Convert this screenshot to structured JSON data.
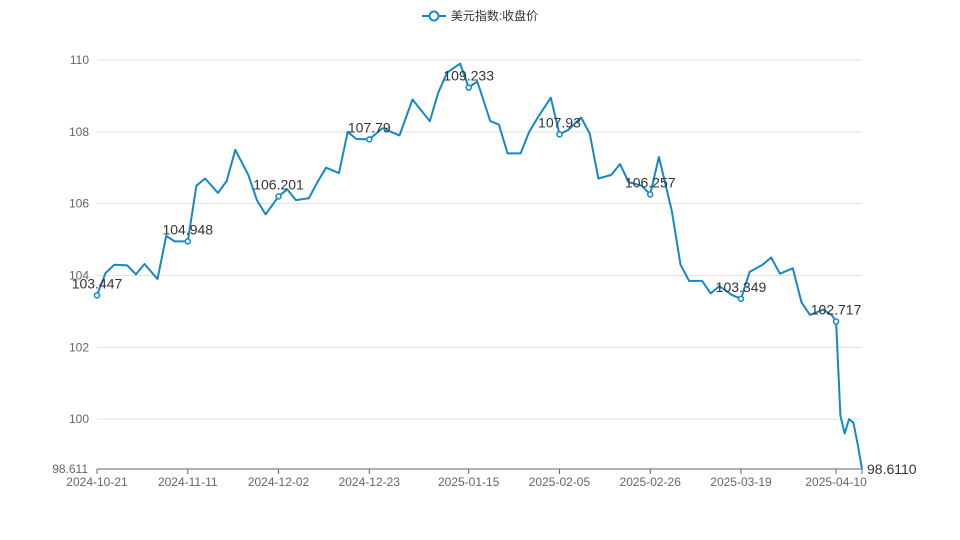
{
  "colors": {
    "line": "#1488c8",
    "grid": "#e0e0e0",
    "axis": "#666666",
    "label": "#333333"
  },
  "legend": {
    "label": "美元指数:收盘价",
    "icon": "line-with-circle-marker"
  },
  "chart_data": {
    "type": "line",
    "series": [
      {
        "name": "美元指数:收盘价"
      }
    ],
    "yaxis": {
      "min": 98.611,
      "max": 110,
      "ticks": [
        100,
        102,
        104,
        106,
        108,
        110
      ],
      "min_label": "98.611"
    },
    "ylim": [
      98.611,
      110
    ],
    "xlim": [
      "2024-10-21",
      "2025-04-16"
    ],
    "xticks": [
      "2024-10-21",
      "2024-11-11",
      "2024-12-02",
      "2024-12-23",
      "2025-01-15",
      "2025-02-05",
      "2025-02-26",
      "2025-03-19",
      "2025-04-10"
    ],
    "points": [
      [
        "2024-10-21",
        103.447
      ],
      [
        "2024-10-23",
        104.07
      ],
      [
        "2024-10-25",
        104.3
      ],
      [
        "2024-10-28",
        104.28
      ],
      [
        "2024-10-30",
        104.03
      ],
      [
        "2024-11-01",
        104.32
      ],
      [
        "2024-11-04",
        103.9
      ],
      [
        "2024-11-06",
        105.1
      ],
      [
        "2024-11-08",
        104.95
      ],
      [
        "2024-11-11",
        104.948
      ],
      [
        "2024-11-13",
        106.5
      ],
      [
        "2024-11-15",
        106.7
      ],
      [
        "2024-11-18",
        106.3
      ],
      [
        "2024-11-20",
        106.63
      ],
      [
        "2024-11-22",
        107.5
      ],
      [
        "2024-11-25",
        106.8
      ],
      [
        "2024-11-27",
        106.1
      ],
      [
        "2024-11-29",
        105.7
      ],
      [
        "2024-12-02",
        106.201
      ],
      [
        "2024-12-04",
        106.4
      ],
      [
        "2024-12-06",
        106.1
      ],
      [
        "2024-12-09",
        106.15
      ],
      [
        "2024-12-11",
        106.6
      ],
      [
        "2024-12-13",
        107.0
      ],
      [
        "2024-12-16",
        106.85
      ],
      [
        "2024-12-18",
        108.0
      ],
      [
        "2024-12-20",
        107.8
      ],
      [
        "2024-12-23",
        107.79
      ],
      [
        "2024-12-26",
        108.1
      ],
      [
        "2024-12-30",
        107.9
      ],
      [
        "2025-01-02",
        108.9
      ],
      [
        "2025-01-06",
        108.3
      ],
      [
        "2025-01-08",
        109.1
      ],
      [
        "2025-01-10",
        109.65
      ],
      [
        "2025-01-13",
        109.9
      ],
      [
        "2025-01-15",
        109.233
      ],
      [
        "2025-01-17",
        109.4
      ],
      [
        "2025-01-20",
        108.3
      ],
      [
        "2025-01-22",
        108.2
      ],
      [
        "2025-01-24",
        107.4
      ],
      [
        "2025-01-27",
        107.4
      ],
      [
        "2025-01-29",
        108.0
      ],
      [
        "2025-01-31",
        108.4
      ],
      [
        "2025-02-03",
        108.95
      ],
      [
        "2025-02-05",
        107.93
      ],
      [
        "2025-02-07",
        108.05
      ],
      [
        "2025-02-10",
        108.4
      ],
      [
        "2025-02-12",
        107.95
      ],
      [
        "2025-02-14",
        106.7
      ],
      [
        "2025-02-17",
        106.8
      ],
      [
        "2025-02-19",
        107.1
      ],
      [
        "2025-02-21",
        106.6
      ],
      [
        "2025-02-24",
        106.5
      ],
      [
        "2025-02-26",
        106.257
      ],
      [
        "2025-02-28",
        107.3
      ],
      [
        "2025-03-03",
        105.8
      ],
      [
        "2025-03-05",
        104.3
      ],
      [
        "2025-03-07",
        103.85
      ],
      [
        "2025-03-10",
        103.85
      ],
      [
        "2025-03-12",
        103.5
      ],
      [
        "2025-03-14",
        103.7
      ],
      [
        "2025-03-17",
        103.45
      ],
      [
        "2025-03-19",
        103.349
      ],
      [
        "2025-03-21",
        104.1
      ],
      [
        "2025-03-24",
        104.3
      ],
      [
        "2025-03-26",
        104.5
      ],
      [
        "2025-03-28",
        104.05
      ],
      [
        "2025-03-31",
        104.2
      ],
      [
        "2025-04-02",
        103.25
      ],
      [
        "2025-04-04",
        102.9
      ],
      [
        "2025-04-07",
        103.05
      ],
      [
        "2025-04-09",
        102.9
      ],
      [
        "2025-04-10",
        102.717
      ],
      [
        "2025-04-11",
        100.1
      ],
      [
        "2025-04-12",
        99.6
      ],
      [
        "2025-04-13",
        100.0
      ],
      [
        "2025-04-14",
        99.9
      ],
      [
        "2025-04-15",
        99.3
      ],
      [
        "2025-04-16",
        98.611
      ]
    ],
    "markers": [
      {
        "date": "2024-10-21",
        "value": 103.447,
        "label": "103.447"
      },
      {
        "date": "2024-11-11",
        "value": 104.948,
        "label": "104.948"
      },
      {
        "date": "2024-12-02",
        "value": 106.201,
        "label": "106.201"
      },
      {
        "date": "2024-12-23",
        "value": 107.79,
        "label": "107.79"
      },
      {
        "date": "2025-01-15",
        "value": 109.233,
        "label": "109.233"
      },
      {
        "date": "2025-02-05",
        "value": 107.93,
        "label": "107.93"
      },
      {
        "date": "2025-02-26",
        "value": 106.257,
        "label": "106.257"
      },
      {
        "date": "2025-03-19",
        "value": 103.349,
        "label": "103.349"
      },
      {
        "date": "2025-04-10",
        "value": 102.717,
        "label": "102.717"
      }
    ],
    "end_label": {
      "date": "2025-04-16",
      "value": 98.611,
      "label": "98.6110"
    },
    "grid": true,
    "legend_position": "top-center"
  }
}
